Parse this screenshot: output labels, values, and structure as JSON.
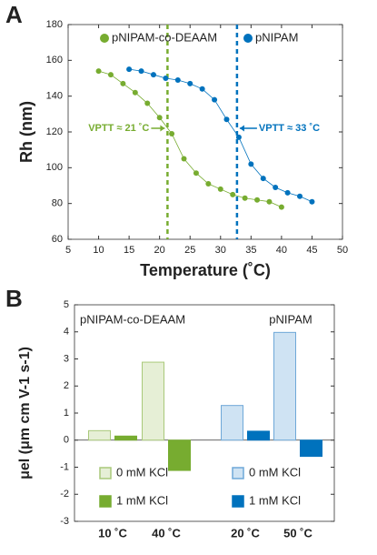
{
  "chart_data": [
    {
      "type": "line",
      "panel": "A",
      "xlabel": "Temperature (˚C)",
      "ylabel": "Rh (nm)",
      "xlim": [
        5,
        50
      ],
      "xticks": [
        5,
        10,
        15,
        20,
        25,
        30,
        35,
        40,
        45,
        50
      ],
      "ylim": [
        60,
        180
      ],
      "yticks": [
        60,
        80,
        100,
        120,
        140,
        160,
        180
      ],
      "legend": "top",
      "series": [
        {
          "name": "pNIPAM-co-DEAAM",
          "color": "#77ac30",
          "x": [
            10,
            12,
            14,
            16,
            18,
            20,
            22,
            24,
            26,
            28,
            30,
            32,
            34,
            36,
            38,
            40
          ],
          "values": [
            154,
            152,
            147,
            142,
            136,
            128,
            119,
            105,
            97,
            91,
            88,
            85,
            83,
            82,
            81,
            78
          ]
        },
        {
          "name": "pNIPAM",
          "color": "#0072bd",
          "x": [
            15,
            17,
            19,
            21,
            23,
            25,
            27,
            29,
            31,
            33,
            35,
            37,
            39,
            41,
            43,
            45
          ],
          "values": [
            155,
            154,
            152,
            150,
            149,
            147,
            144,
            138,
            127,
            117,
            102,
            94,
            89,
            86,
            84,
            81
          ]
        }
      ],
      "vlines": [
        {
          "x": 21.3,
          "color": "#77ac30",
          "label": "VPTT ≈ 21 ˚C"
        },
        {
          "x": 32.7,
          "color": "#0072bd",
          "label": "VPTT ≈ 33 ˚C"
        }
      ]
    },
    {
      "type": "bar",
      "panel": "B",
      "ylabel": "μel (μm cm V-1 s-1)",
      "ylim": [
        -3,
        5
      ],
      "yticks": [
        -3,
        -2,
        -1,
        0,
        1,
        2,
        3,
        4,
        5
      ],
      "categories": [
        "10 ˚C",
        "40 ˚C",
        "20 ˚C",
        "50 ˚C"
      ],
      "group_labels": [
        "pNIPAM-co-DEAAM",
        "pNIPAM"
      ],
      "series": [
        {
          "name": "0 mM KCl",
          "color": "#e6efd6",
          "edge": "#a9c97a",
          "values": [
            0.35,
            2.88,
            null,
            null
          ]
        },
        {
          "name": "1 mM KCl",
          "color": "#77ac30",
          "edge": "#77ac30",
          "values": [
            0.15,
            -1.12,
            null,
            null
          ]
        },
        {
          "name": "0 mM KCl",
          "color": "#cfe3f3",
          "edge": "#6ea8d8",
          "values": [
            null,
            null,
            1.28,
            3.98
          ]
        },
        {
          "name": "1 mM KCl",
          "color": "#0072bd",
          "edge": "#0072bd",
          "values": [
            null,
            null,
            0.33,
            -0.6
          ]
        }
      ]
    }
  ]
}
